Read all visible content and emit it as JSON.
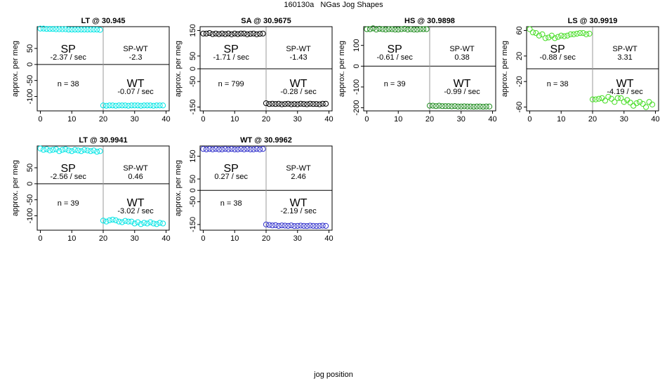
{
  "figure": {
    "title": "160130a   NGas Jog Shapes",
    "xlabel": "jog position"
  },
  "chart_data": [
    {
      "type": "scatter",
      "title": "LT @ 30.945",
      "ylabel": "approx. per meg",
      "color": "#00e5e5",
      "xlim": [
        -1,
        41
      ],
      "ylim": [
        -145,
        118
      ],
      "xticks": [
        0,
        10,
        20,
        30,
        40
      ],
      "yticks": [
        -100,
        -50,
        0,
        50
      ],
      "sp_label": "SP",
      "sp_rate": "-2.37 / sec",
      "spwt_label": "SP-WT",
      "spwt_value": "-2.3",
      "n_label": "n = 38",
      "wt_label": "WT",
      "wt_rate": "-0.07 / sec",
      "series": [
        {
          "x": [
            0,
            1,
            2,
            3,
            4,
            5,
            6,
            7,
            8,
            9,
            10,
            11,
            12,
            13,
            14,
            15,
            16,
            17,
            18,
            19,
            20,
            21,
            22,
            23,
            24,
            25,
            26,
            27,
            28,
            29,
            30,
            31,
            32,
            33,
            34,
            35,
            36,
            37,
            38,
            39
          ],
          "y": [
            112,
            112,
            111,
            111,
            111,
            110,
            110,
            110,
            110,
            109,
            109,
            109,
            109,
            109,
            109,
            109,
            109,
            109,
            109,
            108,
            -128,
            -129,
            -128,
            -128,
            -129,
            -128,
            -128,
            -128,
            -129,
            -128,
            -128,
            -128,
            -129,
            -128,
            -128,
            -128,
            -129,
            -128,
            -128,
            -128
          ]
        }
      ]
    },
    {
      "type": "scatter",
      "title": "SA @ 30.9675",
      "ylabel": "approx. per meg",
      "color": "#000000",
      "xlim": [
        -1,
        41
      ],
      "ylim": [
        -165,
        165
      ],
      "xticks": [
        0,
        10,
        20,
        30,
        40
      ],
      "yticks": [
        -150,
        -50,
        0,
        50,
        150
      ],
      "sp_label": "SP",
      "sp_rate": "-1.71 / sec",
      "spwt_label": "SP-WT",
      "spwt_value": "-1.43",
      "n_label": "n = 799",
      "wt_label": "WT",
      "wt_rate": "-0.28 / sec",
      "series": [
        {
          "x": [
            0,
            1,
            2,
            3,
            4,
            5,
            6,
            7,
            8,
            9,
            10,
            11,
            12,
            13,
            14,
            15,
            16,
            17,
            18,
            19,
            20,
            21,
            22,
            23,
            24,
            25,
            26,
            27,
            28,
            29,
            30,
            31,
            32,
            33,
            34,
            35,
            36,
            37,
            38,
            39
          ],
          "y": [
            138,
            138,
            140,
            136,
            138,
            136,
            138,
            136,
            138,
            135,
            138,
            136,
            138,
            138,
            135,
            137,
            138,
            135,
            137,
            138,
            -135,
            -138,
            -137,
            -138,
            -137,
            -139,
            -138,
            -137,
            -139,
            -138,
            -139,
            -137,
            -138,
            -139,
            -137,
            -138,
            -138,
            -139,
            -137,
            -137
          ]
        }
      ]
    },
    {
      "type": "scatter",
      "title": "HS @ 30.9898",
      "ylabel": "approx. per meg",
      "color": "#1e8c1e",
      "xlim": [
        -1,
        41
      ],
      "ylim": [
        -215,
        190
      ],
      "xticks": [
        0,
        10,
        20,
        30,
        40
      ],
      "yticks": [
        -200,
        -100,
        0,
        100
      ],
      "sp_label": "SP",
      "sp_rate": "-0.61 / sec",
      "spwt_label": "SP-WT",
      "spwt_value": "0.38",
      "n_label": "n = 39",
      "wt_label": "WT",
      "wt_rate": "-0.99 / sec",
      "series": [
        {
          "x": [
            0,
            1,
            2,
            3,
            4,
            5,
            6,
            7,
            8,
            9,
            10,
            11,
            12,
            13,
            14,
            15,
            16,
            17,
            18,
            19,
            20,
            21,
            22,
            23,
            24,
            25,
            26,
            27,
            28,
            29,
            30,
            31,
            32,
            33,
            34,
            35,
            36,
            37,
            38,
            39
          ],
          "y": [
            178,
            178,
            182,
            176,
            180,
            178,
            176,
            178,
            178,
            176,
            176,
            178,
            180,
            176,
            178,
            176,
            176,
            178,
            178,
            178,
            -190,
            -190,
            -192,
            -190,
            -192,
            -192,
            -192,
            -193,
            -192,
            -194,
            -194,
            -193,
            -194,
            -194,
            -195,
            -194,
            -194,
            -195,
            -194,
            -194
          ]
        }
      ]
    },
    {
      "type": "scatter",
      "title": "LS @ 30.9919",
      "ylabel": "approx. per meg",
      "color": "#44dd22",
      "xlim": [
        -1,
        41
      ],
      "ylim": [
        -66,
        66
      ],
      "xticks": [
        0,
        10,
        20,
        30,
        40
      ],
      "yticks": [
        -60,
        -20,
        20,
        60
      ],
      "sp_label": "SP",
      "sp_rate": "-0.88 / sec",
      "spwt_label": "SP-WT",
      "spwt_value": "3.31",
      "n_label": "n = 38",
      "wt_label": "WT",
      "wt_rate": "-4.19 / sec",
      "series": [
        {
          "x": [
            0,
            1,
            2,
            3,
            4,
            5,
            6,
            7,
            8,
            9,
            10,
            11,
            12,
            13,
            14,
            15,
            16,
            17,
            18,
            19,
            20,
            21,
            22,
            23,
            24,
            25,
            26,
            27,
            28,
            29,
            30,
            31,
            32,
            33,
            34,
            35,
            36,
            37,
            38,
            39
          ],
          "y": [
            62,
            57,
            56,
            52,
            54,
            48,
            49,
            52,
            48,
            50,
            52,
            51,
            52,
            54,
            54,
            55,
            56,
            56,
            54,
            55,
            -48,
            -48,
            -47,
            -46,
            -50,
            -44,
            -47,
            -52,
            -46,
            -46,
            -52,
            -49,
            -53,
            -58,
            -54,
            -52,
            -55,
            -60,
            -52,
            -56
          ]
        }
      ]
    },
    {
      "type": "scatter",
      "title": "LT @ 30.9941",
      "ylabel": "approx. per meg",
      "color": "#00e5e5",
      "xlim": [
        -1,
        41
      ],
      "ylim": [
        -145,
        118
      ],
      "xticks": [
        0,
        10,
        20,
        30,
        40
      ],
      "yticks": [
        -100,
        -50,
        0,
        50
      ],
      "sp_label": "SP",
      "sp_rate": "-2.56 / sec",
      "spwt_label": "SP-WT",
      "spwt_value": "0.46",
      "n_label": "n = 39",
      "wt_label": "WT",
      "wt_rate": "-3.02 / sec",
      "series": [
        {
          "x": [
            0,
            1,
            2,
            3,
            4,
            5,
            6,
            7,
            8,
            9,
            10,
            11,
            12,
            13,
            14,
            15,
            16,
            17,
            18,
            19,
            20,
            21,
            22,
            23,
            24,
            25,
            26,
            27,
            28,
            29,
            30,
            31,
            32,
            33,
            34,
            35,
            36,
            37,
            38,
            39
          ],
          "y": [
            110,
            106,
            108,
            104,
            106,
            108,
            102,
            106,
            108,
            104,
            102,
            106,
            104,
            102,
            106,
            104,
            102,
            104,
            100,
            102,
            -115,
            -118,
            -114,
            -112,
            -114,
            -118,
            -120,
            -116,
            -118,
            -118,
            -124,
            -120,
            -126,
            -122,
            -124,
            -120,
            -124,
            -126,
            -122,
            -124
          ]
        }
      ]
    },
    {
      "type": "scatter",
      "title": "WT @ 30.9962",
      "ylabel": "approx. per meg",
      "color": "#3333cc",
      "xlim": [
        -1,
        41
      ],
      "ylim": [
        -175,
        195
      ],
      "xticks": [
        0,
        10,
        20,
        30,
        40
      ],
      "yticks": [
        -150,
        -50,
        0,
        50,
        150
      ],
      "sp_label": "SP",
      "sp_rate": "0.27 / sec",
      "spwt_label": "SP-WT",
      "spwt_value": "2.46",
      "n_label": "n = 38",
      "wt_label": "WT",
      "wt_rate": "-2.19 / sec",
      "series": [
        {
          "x": [
            0,
            1,
            2,
            3,
            4,
            5,
            6,
            7,
            8,
            9,
            10,
            11,
            12,
            13,
            14,
            15,
            16,
            17,
            18,
            19,
            20,
            21,
            22,
            23,
            24,
            25,
            26,
            27,
            28,
            29,
            30,
            31,
            32,
            33,
            34,
            35,
            36,
            37,
            38,
            39
          ],
          "y": [
            182,
            180,
            182,
            180,
            182,
            180,
            180,
            182,
            180,
            182,
            180,
            180,
            182,
            180,
            182,
            180,
            180,
            182,
            180,
            182,
            -150,
            -152,
            -154,
            -153,
            -156,
            -154,
            -155,
            -156,
            -154,
            -157,
            -156,
            -155,
            -156,
            -157,
            -155,
            -156,
            -157,
            -156,
            -155,
            -156
          ]
        }
      ]
    }
  ]
}
